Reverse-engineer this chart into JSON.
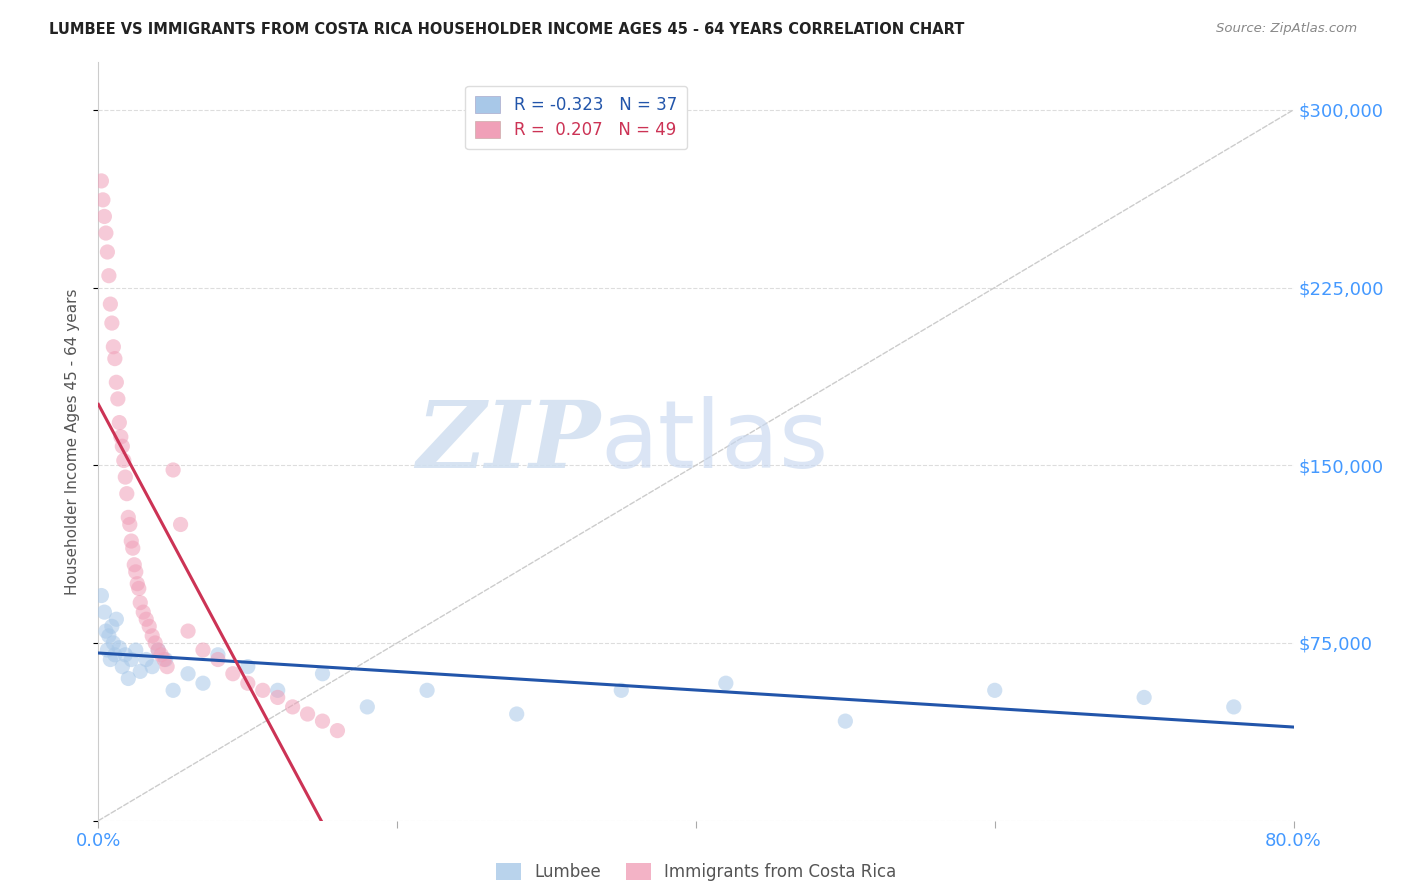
{
  "title": "LUMBEE VS IMMIGRANTS FROM COSTA RICA HOUSEHOLDER INCOME AGES 45 - 64 YEARS CORRELATION CHART",
  "source": "Source: ZipAtlas.com",
  "ylabel": "Householder Income Ages 45 - 64 years",
  "xlim": [
    0.0,
    0.8
  ],
  "ylim": [
    0,
    320000
  ],
  "yticks": [
    0,
    75000,
    150000,
    225000,
    300000
  ],
  "xticks": [
    0.0,
    0.2,
    0.4,
    0.6,
    0.8
  ],
  "xtick_labels": [
    "0.0%",
    "",
    "",
    "",
    "80.0%"
  ],
  "ytick_labels_right": [
    "",
    "$75,000",
    "$150,000",
    "$225,000",
    "$300,000"
  ],
  "lumbee_R": -0.323,
  "lumbee_N": 37,
  "costa_rica_R": 0.207,
  "costa_rica_N": 49,
  "lumbee_color": "#a8c8e8",
  "costa_rica_color": "#f0a0b8",
  "lumbee_line_color": "#2255aa",
  "costa_rica_line_color": "#cc3355",
  "ref_line_color": "#cccccc",
  "background_color": "#ffffff",
  "grid_color": "#dddddd",
  "lumbee_x": [
    0.002,
    0.004,
    0.005,
    0.006,
    0.007,
    0.008,
    0.009,
    0.01,
    0.011,
    0.012,
    0.014,
    0.016,
    0.018,
    0.02,
    0.022,
    0.025,
    0.028,
    0.032,
    0.036,
    0.04,
    0.045,
    0.05,
    0.06,
    0.07,
    0.08,
    0.1,
    0.12,
    0.15,
    0.18,
    0.22,
    0.28,
    0.35,
    0.42,
    0.5,
    0.6,
    0.7,
    0.76
  ],
  "lumbee_y": [
    95000,
    88000,
    80000,
    72000,
    78000,
    68000,
    82000,
    75000,
    70000,
    85000,
    73000,
    65000,
    70000,
    60000,
    68000,
    72000,
    63000,
    68000,
    65000,
    72000,
    68000,
    55000,
    62000,
    58000,
    70000,
    65000,
    55000,
    62000,
    48000,
    55000,
    45000,
    55000,
    58000,
    42000,
    55000,
    52000,
    48000
  ],
  "costa_rica_x": [
    0.002,
    0.003,
    0.004,
    0.005,
    0.006,
    0.007,
    0.008,
    0.009,
    0.01,
    0.011,
    0.012,
    0.013,
    0.014,
    0.015,
    0.016,
    0.017,
    0.018,
    0.019,
    0.02,
    0.021,
    0.022,
    0.023,
    0.024,
    0.025,
    0.026,
    0.027,
    0.028,
    0.03,
    0.032,
    0.034,
    0.036,
    0.038,
    0.04,
    0.042,
    0.044,
    0.046,
    0.05,
    0.055,
    0.06,
    0.07,
    0.08,
    0.09,
    0.1,
    0.11,
    0.12,
    0.13,
    0.14,
    0.15,
    0.16
  ],
  "costa_rica_y": [
    270000,
    262000,
    255000,
    248000,
    240000,
    230000,
    218000,
    210000,
    200000,
    195000,
    185000,
    178000,
    168000,
    162000,
    158000,
    152000,
    145000,
    138000,
    128000,
    125000,
    118000,
    115000,
    108000,
    105000,
    100000,
    98000,
    92000,
    88000,
    85000,
    82000,
    78000,
    75000,
    72000,
    70000,
    68000,
    65000,
    148000,
    125000,
    80000,
    72000,
    68000,
    62000,
    58000,
    55000,
    52000,
    48000,
    45000,
    42000,
    38000
  ],
  "watermark_zip": "ZIP",
  "watermark_atlas": "atlas",
  "marker_size": 120,
  "marker_alpha": 0.55,
  "line_width": 2.2
}
